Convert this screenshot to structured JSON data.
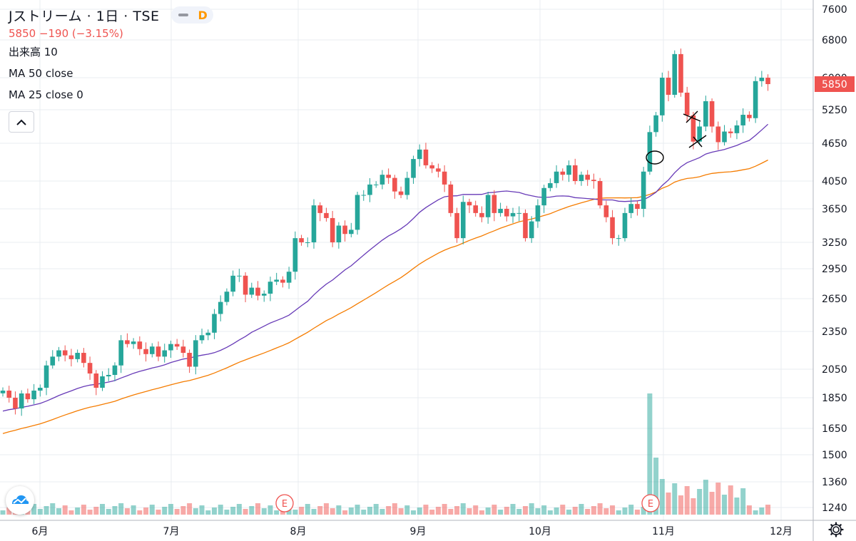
{
  "header": {
    "title": "Jストリーム · 1日 · TSE",
    "interval_badge": "D",
    "price_change": "5850 −190 (−3.15%)",
    "volume": "出来高 10",
    "ma50": "MA 50 close",
    "ma25": "MA 25 close 0"
  },
  "colors": {
    "up": "#26a69a",
    "down": "#ef5350",
    "ma_purple": "#673ab7",
    "ma_orange": "#f57c00",
    "grid": "#e9ecf1"
  },
  "chart_data": {
    "type": "candlestick",
    "title": "Jストリーム · 1日 · TSE",
    "last_price": 5850,
    "y_ticks": [
      1240,
      1360,
      1500,
      1650,
      1850,
      2050,
      2350,
      2650,
      2950,
      3250,
      3650,
      4050,
      4650,
      5250,
      6000,
      6800,
      7600
    ],
    "x_ticks": [
      "6月",
      "7月",
      "8月",
      "9月",
      "10月",
      "11月",
      "12月"
    ],
    "earnings_markers": [
      "E",
      "E"
    ],
    "close": [
      1900,
      1850,
      1780,
      1880,
      1840,
      1900,
      1920,
      2080,
      2150,
      2200,
      2160,
      2130,
      2180,
      2100,
      2020,
      1920,
      2000,
      2010,
      2080,
      2280,
      2250,
      2270,
      2210,
      2170,
      2230,
      2150,
      2200,
      2250,
      2230,
      2180,
      2070,
      2280,
      2320,
      2340,
      2510,
      2620,
      2720,
      2880,
      2880,
      2690,
      2760,
      2680,
      2700,
      2820,
      2840,
      2810,
      2920,
      3300,
      3250,
      3250,
      3700,
      3600,
      3540,
      3250,
      3450,
      3350,
      3400,
      3850,
      3850,
      4000,
      4000,
      4150,
      4100,
      3900,
      3850,
      4100,
      4400,
      4550,
      4300,
      4250,
      4200,
      4000,
      3600,
      3300,
      3750,
      3700,
      3600,
      3550,
      3850,
      3600,
      3650,
      3560,
      3600,
      3600,
      3300,
      3500,
      3700,
      3950,
      4020,
      4200,
      4150,
      4300,
      4050,
      4150,
      4070,
      4050,
      3700,
      3550,
      3300,
      3300,
      3600,
      3720,
      3650,
      4200,
      4850,
      5150,
      6000,
      5600,
      6500,
      5650,
      5150,
      4680,
      4950,
      5450,
      4950,
      4670,
      4860,
      4830,
      4970,
      5160,
      5100,
      5920,
      6000,
      5850
    ]
  }
}
